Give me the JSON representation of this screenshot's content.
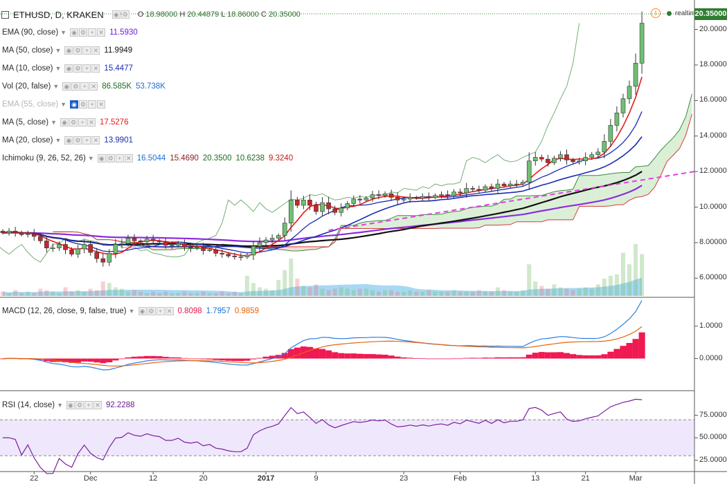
{
  "header": {
    "symbol": "ETHUSD, D, KRAKEN",
    "ohlc": {
      "o": "18.98000",
      "h": "20.44879",
      "l": "18.86000",
      "c": "20.35000"
    },
    "realtime_label": "realtime",
    "last_price": "20.35000"
  },
  "indicators": [
    {
      "label": "EMA (90, close)",
      "values": [
        "11.5930"
      ],
      "colors": [
        "#6a1bd8"
      ],
      "faded": false
    },
    {
      "label": "MA (50, close)",
      "values": [
        "11.9949"
      ],
      "colors": [
        "#111111"
      ],
      "faded": false
    },
    {
      "label": "MA (10, close)",
      "values": [
        "15.4477"
      ],
      "colors": [
        "#1a2bb0"
      ],
      "faded": false
    },
    {
      "label": "Vol (20, false)",
      "values": [
        "86.585K",
        "53.738K"
      ],
      "colors": [
        "#1e6b1e",
        "#1a6fd8"
      ],
      "faded": false
    },
    {
      "label": "EMA (55, close)",
      "values": [],
      "colors": [],
      "faded": true
    },
    {
      "label": "MA (5, close)",
      "values": [
        "17.5276"
      ],
      "colors": [
        "#e31a1a"
      ],
      "faded": false
    },
    {
      "label": "MA (20, close)",
      "values": [
        "13.9901"
      ],
      "colors": [
        "#1a2bb0"
      ],
      "faded": false
    },
    {
      "label": "Ichimoku (9, 26, 52, 26)",
      "values": [
        "16.5044",
        "15.4690",
        "20.3500",
        "10.6238",
        "9.3240"
      ],
      "colors": [
        "#1a6fd8",
        "#8b1a1a",
        "#1e6b1e",
        "#1e6b1e",
        "#c41a1a"
      ],
      "faded": false
    }
  ],
  "macd_legend": {
    "label": "MACD (12, 26, close, 9, false, true)",
    "values": [
      "0.8098",
      "1.7957",
      "0.9859"
    ],
    "colors": [
      "#e3174d",
      "#1a6fd8",
      "#e8620c"
    ]
  },
  "rsi_legend": {
    "label": "RSI (14, close)",
    "values": [
      "92.2288"
    ],
    "colors": [
      "#6b1a8c"
    ]
  },
  "chart_data": {
    "type": "candlestick",
    "price_axis": {
      "ticks": [
        "6.00000",
        "8.00000",
        "10.00000",
        "12.00000",
        "14.00000",
        "16.00000",
        "18.00000",
        "20.00000"
      ],
      "range": [
        5.0,
        20.8
      ]
    },
    "macd_axis": {
      "ticks": [
        "0.0000",
        "1.0000"
      ],
      "range": [
        -0.95,
        1.85
      ]
    },
    "rsi_axis": {
      "ticks": [
        "25.0000",
        "50.0000",
        "75.0000"
      ],
      "range": [
        14,
        100
      ],
      "bands": [
        30,
        70
      ]
    },
    "x_ticks": [
      {
        "label": "22",
        "index": 5,
        "major": false
      },
      {
        "label": "Dec",
        "index": 14,
        "major": false
      },
      {
        "label": "12",
        "index": 24,
        "major": false
      },
      {
        "label": "20",
        "index": 32,
        "major": false
      },
      {
        "label": "2017",
        "index": 42,
        "major": true
      },
      {
        "label": "9",
        "index": 50,
        "major": false
      },
      {
        "label": "23",
        "index": 64,
        "major": false
      },
      {
        "label": "Feb",
        "index": 73,
        "major": false
      },
      {
        "label": "13",
        "index": 85,
        "major": false
      },
      {
        "label": "21",
        "index": 93,
        "major": false
      },
      {
        "label": "Mar",
        "index": 101,
        "major": false
      }
    ],
    "candles_count": 103,
    "closes": [
      8.55,
      8.65,
      8.55,
      8.45,
      8.5,
      8.35,
      8.1,
      7.7,
      7.7,
      7.9,
      7.6,
      7.35,
      7.65,
      7.9,
      7.45,
      7.1,
      6.9,
      7.4,
      7.9,
      7.95,
      8.25,
      8.1,
      8.05,
      8.2,
      8.1,
      8.05,
      7.85,
      7.85,
      7.95,
      7.75,
      7.7,
      7.75,
      7.55,
      7.6,
      7.4,
      7.35,
      7.25,
      7.2,
      7.2,
      7.3,
      7.8,
      8.0,
      8.15,
      8.25,
      8.4,
      9.1,
      10.4,
      10.1,
      10.4,
      10.1,
      9.75,
      10.25,
      9.9,
      9.7,
      9.95,
      10.2,
      10.45,
      10.4,
      10.5,
      10.7,
      10.65,
      10.75,
      10.55,
      10.4,
      10.45,
      10.55,
      10.5,
      10.6,
      10.55,
      10.65,
      10.7,
      10.65,
      10.85,
      10.8,
      11.05,
      11.0,
      10.95,
      11.15,
      11.05,
      11.3,
      11.2,
      11.3,
      11.3,
      11.4,
      12.6,
      12.8,
      12.7,
      12.5,
      12.75,
      12.95,
      12.65,
      12.55,
      12.6,
      12.8,
      12.95,
      13.1,
      13.7,
      14.6,
      15.3,
      16.1,
      16.8,
      18.1,
      20.35
    ],
    "volume": [
      3,
      2,
      4,
      2,
      3,
      2,
      5,
      4,
      3,
      2,
      6,
      3,
      4,
      3,
      5,
      4,
      10,
      9,
      6,
      5,
      3,
      4,
      3,
      2,
      3,
      2,
      3,
      2,
      2,
      3,
      2,
      2,
      3,
      2,
      2,
      3,
      2,
      3,
      2,
      14,
      9,
      6,
      5,
      4,
      11,
      18,
      26,
      12,
      7,
      6,
      8,
      5,
      4,
      5,
      6,
      5,
      4,
      5,
      5,
      4,
      3,
      4,
      4,
      3,
      3,
      4,
      3,
      3,
      4,
      3,
      3,
      3,
      4,
      3,
      3,
      3,
      4,
      3,
      3,
      6,
      4,
      3,
      3,
      4,
      22,
      10,
      7,
      5,
      8,
      6,
      5,
      4,
      5,
      6,
      5,
      8,
      12,
      14,
      15,
      30,
      22,
      36,
      29
    ],
    "rsi_final": 92.2288,
    "macd_final": {
      "macd": 1.7957,
      "signal": 0.9859,
      "hist": 0.8098
    }
  }
}
